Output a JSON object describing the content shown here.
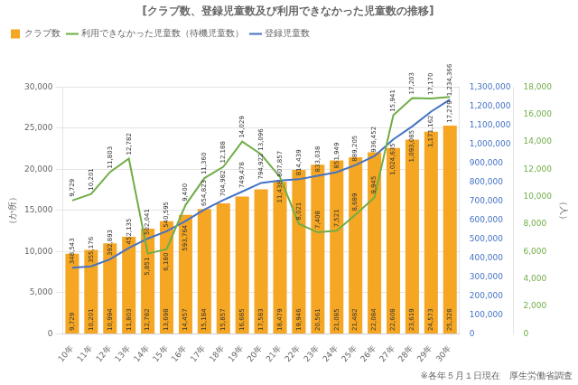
{
  "chart_data": {
    "type": "bar",
    "title": "[クラブ数、登録児童数及び利用できなかった児童数の推移]",
    "ylabel": "（か所）",
    "y2label": "（人）",
    "footnote": "※各年５月１日現在　厚生労働省調査",
    "categories": [
      "10年",
      "11年",
      "12年",
      "13年",
      "14年",
      "15年",
      "16年",
      "17年",
      "18年",
      "19年",
      "20年",
      "21年",
      "22年",
      "23年",
      "24年",
      "25年",
      "26年",
      "27年",
      "28年",
      "29年",
      "30年"
    ],
    "series": [
      {
        "name": "クラブ数",
        "type": "bar",
        "axis": "y",
        "color": "#F5A623",
        "values": [
          9729,
          10201,
          10994,
          11803,
          12782,
          13698,
          14457,
          15184,
          15857,
          16685,
          17583,
          18479,
          19946,
          20561,
          21085,
          21482,
          22084,
          22608,
          23619,
          24573,
          25328
        ],
        "value_labels": [
          "9,729",
          "10,201",
          "10,994",
          "11,803",
          "12,782",
          "13,698",
          "14,457",
          "15,184",
          "15,857",
          "16,685",
          "17,583",
          "18,479",
          "19,946",
          "20,561",
          "21,085",
          "21,482",
          "22,084",
          "22,608",
          "23,619",
          "24,573",
          "25,328"
        ]
      },
      {
        "name": "利用できなかった児童数（待機児童数）",
        "type": "line",
        "axis": "y3",
        "color": "#70AD47",
        "values": [
          9729,
          10201,
          11803,
          12782,
          5851,
          6180,
          9400,
          11360,
          12188,
          14029,
          13096,
          11438,
          8021,
          7408,
          7521,
          8689,
          9945,
          15941,
          17203,
          17170,
          17279
        ],
        "value_labels": [
          "9,729",
          "10,201",
          "11,803",
          "12,782",
          "5,851",
          "6,180",
          "9,400",
          "11,360",
          "12,188",
          "14,029",
          "13,096",
          "11,438",
          "8,021",
          "7,408",
          "7,521",
          "8,689",
          "9,945",
          "15,941",
          "17,203",
          "17,170",
          "17,279"
        ]
      },
      {
        "name": "登録児童数",
        "type": "line",
        "axis": "y2",
        "color": "#4472C4",
        "values": [
          348543,
          355176,
          392893,
          452135,
          502041,
          540595,
          593764,
          654823,
          704982,
          749478,
          794922,
          807857,
          814439,
          833038,
          851949,
          889205,
          936452,
          1024635,
          1093085,
          1171162,
          1234366
        ],
        "value_labels": [
          "348,543",
          "355,176",
          "392,893",
          "452,135",
          "502,041",
          "540,595",
          "593,764",
          "654,823",
          "704,982",
          "749,478",
          "794,922",
          "807,857",
          "814,439",
          "833,038",
          "851,949",
          "889,205",
          "936,452",
          "1,024,635",
          "1,093,085",
          "1,171,162",
          "1,234,366"
        ]
      }
    ],
    "ylim": [
      0,
      30000
    ],
    "yticks": [
      0,
      {
        "value": 5000,
        "label": "5,000"
      },
      {
        "value": 10000,
        "label": "10,000"
      },
      {
        "value": 15000,
        "label": "15,000"
      },
      {
        "value": 20000,
        "label": "20,000"
      },
      {
        "value": 25000,
        "label": "25,000"
      },
      {
        "value": 30000,
        "label": "30,000"
      }
    ],
    "y2lim": [
      0,
      1300000
    ],
    "y2ticks": [
      0,
      {
        "value": 100000,
        "label": "100,000"
      },
      {
        "value": 200000,
        "label": "200,000"
      },
      {
        "value": 300000,
        "label": "300,000"
      },
      {
        "value": 400000,
        "label": "400,000"
      },
      {
        "value": 500000,
        "label": "500,000"
      },
      {
        "value": 600000,
        "label": "600,000"
      },
      {
        "value": 700000,
        "label": "700,000"
      },
      {
        "value": 800000,
        "label": "800,000"
      },
      {
        "value": 900000,
        "label": "900,000"
      },
      {
        "value": 1000000,
        "label": "1,000,000"
      },
      {
        "value": 1100000,
        "label": "1,100,000"
      },
      {
        "value": 1200000,
        "label": "1,200,000"
      },
      {
        "value": 1300000,
        "label": "1,300,000"
      }
    ],
    "y3lim": [
      0,
      18000
    ],
    "y3ticks": [
      0,
      {
        "value": 2000,
        "label": "2,000"
      },
      {
        "value": 4000,
        "label": "4,000"
      },
      {
        "value": 6000,
        "label": "6,000"
      },
      {
        "value": 8000,
        "label": "8,000"
      },
      {
        "value": 10000,
        "label": "10,000"
      },
      {
        "value": 12000,
        "label": "12,000"
      },
      {
        "value": 14000,
        "label": "14,000"
      },
      {
        "value": 16000,
        "label": "16,000"
      },
      {
        "value": 18000,
        "label": "18,000"
      }
    ],
    "grid": true,
    "legend": "upper left",
    "data_labels": true
  }
}
